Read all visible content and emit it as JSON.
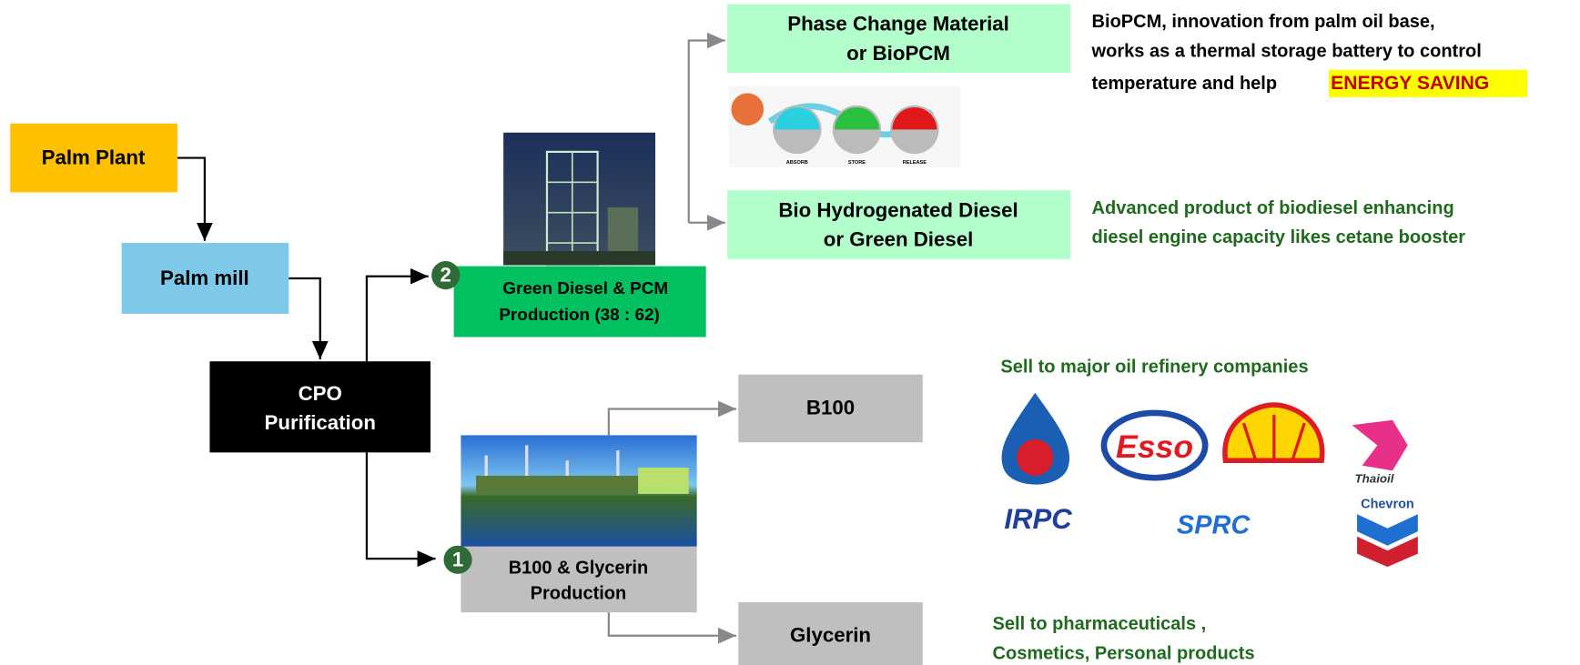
{
  "nodes": {
    "palm_plant": {
      "label": "Palm Plant"
    },
    "palm_mill": {
      "label": "Palm mill"
    },
    "cpo": {
      "lines": [
        "CPO",
        "Purification"
      ]
    },
    "green_diesel_pcm": {
      "badge": "2",
      "lines": [
        "Green Diesel & PCM",
        "Production (38 : 62)"
      ]
    },
    "b100_glycerin": {
      "badge": "1",
      "lines": [
        "B100 & Glycerin",
        "Production"
      ]
    },
    "pcm": {
      "lines": [
        "Phase Change Material",
        "or BioPCM"
      ]
    },
    "green_diesel": {
      "lines": [
        "Bio Hydrogenated Diesel",
        "or Green Diesel"
      ]
    },
    "b100": {
      "label": "B100"
    },
    "glycerin": {
      "label": "Glycerin"
    }
  },
  "pcm_image": {
    "labels": [
      "ABSORB",
      "STORE",
      "RELEASE"
    ]
  },
  "notes": {
    "biopcm": {
      "lines": [
        "BioPCM, innovation from palm oil base,",
        "works as a thermal storage battery to control",
        "temperature and help "
      ],
      "highlight": "ENERGY SAVING"
    },
    "green_diesel": {
      "lines": [
        "Advanced product of biodiesel enhancing",
        "diesel engine capacity likes cetane booster"
      ]
    },
    "refinery": {
      "text": "Sell to major oil refinery companies"
    },
    "glycerin": {
      "lines": [
        "Sell to pharmaceuticals ,",
        "Cosmetics, Personal products"
      ]
    }
  },
  "logos": {
    "esso": "Esso",
    "thaioil": "Thaioil",
    "irpc": "IRPC",
    "sprc": "SPRC",
    "chevron": "Chevron"
  }
}
